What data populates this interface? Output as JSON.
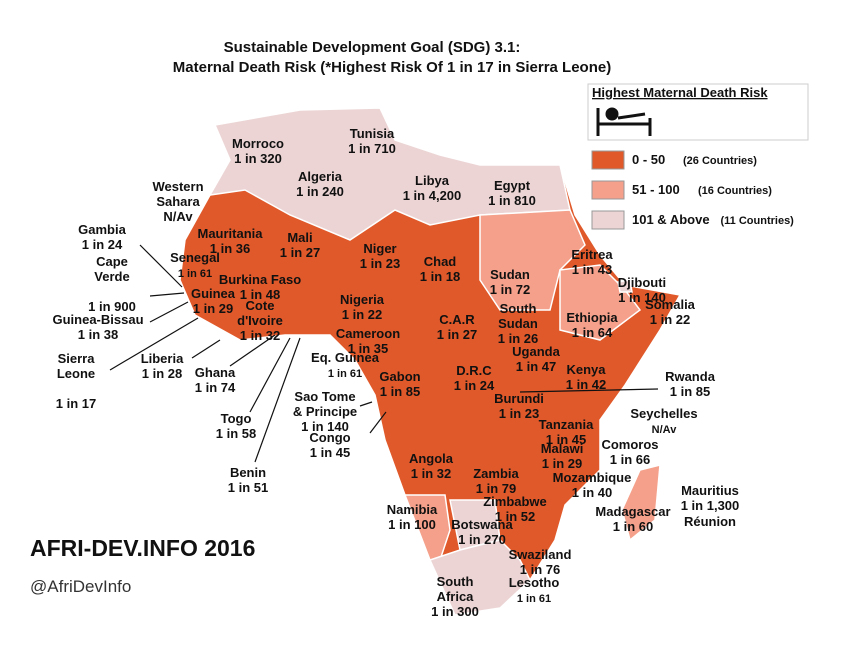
{
  "header": {
    "title_lines": [
      "Sustainable Development Goal (SDG) 3.1:",
      "Maternal Death Risk (*Highest Risk Of 1 in 17 in Sierra Leone)"
    ]
  },
  "legend": {
    "title": "Highest Maternal Death Risk",
    "items": [
      {
        "color": "#e0592a",
        "range": "0 - 50",
        "count": "(26 Countries)"
      },
      {
        "color": "#f4a08a",
        "range": "51 - 100",
        "count": "(16 Countries)"
      },
      {
        "color": "#ecd4d4",
        "range": "101 & Above",
        "count": "(11 Countries)"
      }
    ]
  },
  "countries": [
    {
      "name": [
        "Morroco"
      ],
      "risk": "1 in 320"
    },
    {
      "name": [
        "Tunisia"
      ],
      "risk": "1 in 710"
    },
    {
      "name": [
        "Algeria"
      ],
      "risk": "1 in 240"
    },
    {
      "name": [
        "Libya"
      ],
      "risk": "1 in 4,200"
    },
    {
      "name": [
        "Egypt"
      ],
      "risk": "1 in 810"
    },
    {
      "name": [
        "Western",
        "Sahara"
      ],
      "risk": "N/Av"
    },
    {
      "name": [
        "Gambia"
      ],
      "risk": "1 in 24"
    },
    {
      "name": [
        "Mauritania"
      ],
      "risk": "1 in 36"
    },
    {
      "name": [
        "Mali"
      ],
      "risk": "1 in 27"
    },
    {
      "name": [
        "Niger"
      ],
      "risk": "1 in 23"
    },
    {
      "name": [
        "Chad"
      ],
      "risk": "1 in 18"
    },
    {
      "name": [
        "Senegal"
      ],
      "risk": "1 in 61"
    },
    {
      "name": [
        "Cape",
        "Verde"
      ],
      "risk": "1 in 900"
    },
    {
      "name": [
        "Eritrea"
      ],
      "risk": "1 in 43"
    },
    {
      "name": [
        "Djibouti"
      ],
      "risk": "1 in 140"
    },
    {
      "name": [
        "Sudan"
      ],
      "risk": "1 in 72"
    },
    {
      "name": [
        "Burkina Faso"
      ],
      "risk": "1 in 48"
    },
    {
      "name": [
        "Guinea"
      ],
      "risk": "1 in 29"
    },
    {
      "name": [
        "Nigeria"
      ],
      "risk": "1 in 22"
    },
    {
      "name": [
        "Somalia"
      ],
      "risk": "1 in 22"
    },
    {
      "name": [
        "Guinea-Bissau"
      ],
      "risk": "1 in 38"
    },
    {
      "name": [
        "Cote",
        "d'Ivoire"
      ],
      "risk": "1 in 32"
    },
    {
      "name": [
        "South",
        "Sudan"
      ],
      "risk": "1 in 26"
    },
    {
      "name": [
        "Ethiopia"
      ],
      "risk": "1 in 64"
    },
    {
      "name": [
        "C.A.R"
      ],
      "risk": "1 in 27"
    },
    {
      "name": [
        "Cameroon"
      ],
      "risk": "1 in 35"
    },
    {
      "name": [
        "Sierra",
        "Leone"
      ],
      "risk": "1 in 17"
    },
    {
      "name": [
        "Liberia"
      ],
      "risk": "1 in 28"
    },
    {
      "name": [
        "Uganda"
      ],
      "risk": "1 in 47"
    },
    {
      "name": [
        "Eq. Guinea"
      ],
      "risk": "1 in 61"
    },
    {
      "name": [
        "Ghana"
      ],
      "risk": "1 in 74"
    },
    {
      "name": [
        "D.R.C"
      ],
      "risk": "1 in 24"
    },
    {
      "name": [
        "Kenya"
      ],
      "risk": "1 in 42"
    },
    {
      "name": [
        "Gabon"
      ],
      "risk": "1 in 85"
    },
    {
      "name": [
        "Rwanda"
      ],
      "risk": "1 in 85"
    },
    {
      "name": [
        "Sao Tome",
        "& Principe"
      ],
      "risk": "1 in 140"
    },
    {
      "name": [
        "Burundi"
      ],
      "risk": "1 in 23"
    },
    {
      "name": [
        "Seychelles"
      ],
      "risk": "N/Av"
    },
    {
      "name": [
        "Togo"
      ],
      "risk": "1 in 58"
    },
    {
      "name": [
        "Congo"
      ],
      "risk": "1 in 45"
    },
    {
      "name": [
        "Tanzania"
      ],
      "risk": "1 in 45"
    },
    {
      "name": [
        "Comoros"
      ],
      "risk": "1 in 66"
    },
    {
      "name": [
        "Malawi"
      ],
      "risk": "1 in 29"
    },
    {
      "name": [
        "Angola"
      ],
      "risk": "1 in 32"
    },
    {
      "name": [
        "Benin"
      ],
      "risk": "1 in 51"
    },
    {
      "name": [
        "Zambia"
      ],
      "risk": "1 in 79"
    },
    {
      "name": [
        "Mozambique"
      ],
      "risk": "1 in 40"
    },
    {
      "name": [
        "Mauritius"
      ],
      "risk": "1 in 1,300"
    },
    {
      "name": [
        "Madagascar"
      ],
      "risk": "1 in 60"
    },
    {
      "name": [
        "Réunion"
      ]
    },
    {
      "name": [
        "Namibia"
      ],
      "risk": "1 in 100"
    },
    {
      "name": [
        "Zimbabwe"
      ],
      "risk": "1 in 52"
    },
    {
      "name": [
        "Botswana"
      ],
      "risk": "1 in 270"
    },
    {
      "name": [
        "Swaziland"
      ],
      "risk": "1 in 76"
    },
    {
      "name": [
        "Lesotho"
      ],
      "risk": "1 in 61"
    },
    {
      "name": [
        "South",
        "Africa"
      ],
      "risk": "1 in 300"
    }
  ],
  "branding": {
    "site": "AFRI-DEV.INFO 2016",
    "handle": "@AfriDevInfo"
  }
}
